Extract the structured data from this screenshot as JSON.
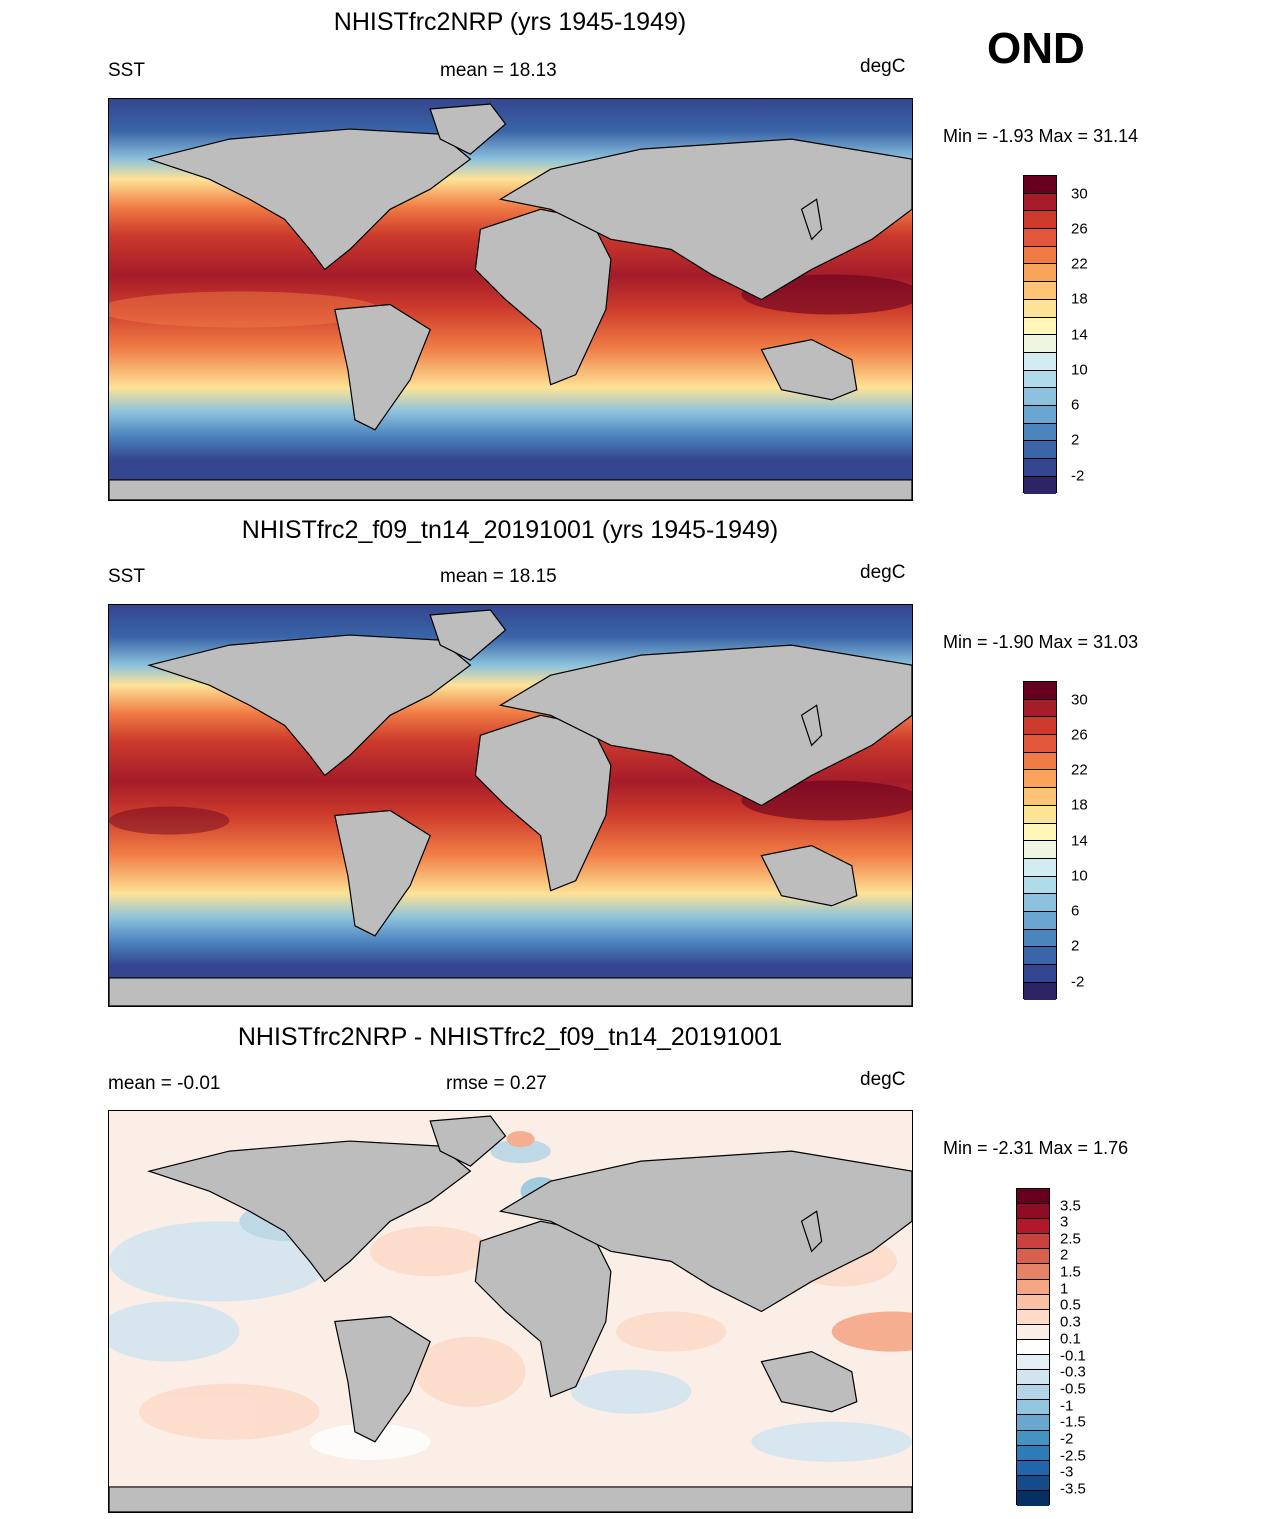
{
  "season": "OND",
  "units": "degC",
  "panels": [
    {
      "title": "NHISTfrc2NRP (yrs 1945-1949)",
      "left_label": "SST",
      "center_label": "mean =  18.13",
      "right_label": "degC",
      "minmax": "Min =  -1.93 Max =  31.14"
    },
    {
      "title": "NHISTfrc2_f09_tn14_20191001 (yrs 1945-1949)",
      "left_label": "SST",
      "center_label": "mean =  18.15",
      "right_label": "degC",
      "minmax": "Min =  -1.90 Max =  31.03"
    },
    {
      "title": "NHISTfrc2NRP - NHISTfrc2_f09_tn14_20191001",
      "left_label": "mean =  -0.01",
      "center_label": "rmse =   0.27",
      "right_label": "degC",
      "minmax": "Min =  -2.31 Max =   1.76"
    }
  ],
  "colorbar_sst": {
    "labels": [
      "30",
      "26",
      "22",
      "18",
      "14",
      "10",
      "6",
      "2",
      "-2"
    ],
    "colors": [
      "#67001f",
      "#a51c2a",
      "#cc3a2c",
      "#e2573a",
      "#f07b45",
      "#f9a35b",
      "#fdc476",
      "#fde396",
      "#fff6b8",
      "#eef6e2",
      "#d2ecf1",
      "#b0dbea",
      "#8cc2dd",
      "#6aa6cf",
      "#4c84be",
      "#3a65a8",
      "#34468f",
      "#2c2464"
    ]
  },
  "colorbar_diff": {
    "labels": [
      "3.5",
      "3",
      "2.5",
      "2",
      "1.5",
      "1",
      "0.5",
      "0.3",
      "0.1",
      "-0.1",
      "-0.3",
      "-0.5",
      "-1",
      "-1.5",
      "-2",
      "-2.5",
      "-3",
      "-3.5"
    ],
    "colors": [
      "#67001f",
      "#8e0d25",
      "#b2182b",
      "#c8403f",
      "#d6604d",
      "#e58267",
      "#f4a582",
      "#f8c1a4",
      "#fddbc7",
      "#fbeee6",
      "#ffffff",
      "#e6eff5",
      "#d1e5f0",
      "#b4d5e7",
      "#92c5de",
      "#6aa7cf",
      "#4393c3",
      "#2f7bb6",
      "#2166ac",
      "#164b8a",
      "#053061"
    ]
  },
  "map_colors": {
    "land": "#bdbdbd",
    "coast": "#000000"
  }
}
